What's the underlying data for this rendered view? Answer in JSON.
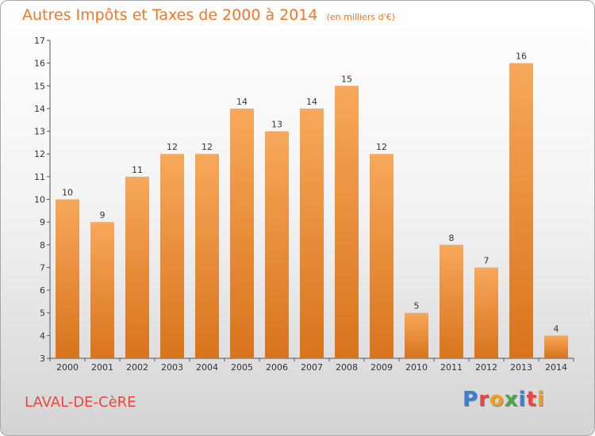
{
  "title": "Autres Impôts et Taxes de 2000 à 2014",
  "subtitle": "(en milliers d'€)",
  "commune": "LAVAL-DE-CèRE",
  "logo": {
    "text": "Proxiti",
    "letters": [
      {
        "ch": "P",
        "color": "#3a7fd0"
      },
      {
        "ch": "r",
        "color": "#e8483f"
      },
      {
        "ch": "o",
        "color": "#f0a020"
      },
      {
        "ch": "x",
        "color": "#44aa44"
      },
      {
        "ch": "i",
        "color": "#3a7fd0"
      },
      {
        "ch": "t",
        "color": "#e8483f"
      },
      {
        "ch": "i",
        "color": "#f0a020"
      }
    ]
  },
  "colors": {
    "bar_light": "#f7a85a",
    "bar_dark": "#d8741c",
    "title": "#f07828",
    "commune": "#e8483f"
  },
  "chart_data": {
    "type": "bar",
    "categories": [
      "2000",
      "2001",
      "2002",
      "2003",
      "2004",
      "2005",
      "2006",
      "2007",
      "2008",
      "2009",
      "2010",
      "2011",
      "2012",
      "2013",
      "2014"
    ],
    "values": [
      10,
      9,
      11,
      12,
      12,
      14,
      13,
      14,
      15,
      12,
      5,
      8,
      7,
      16,
      4
    ],
    "ylim": [
      3,
      17
    ],
    "yticks": [
      3,
      4,
      5,
      6,
      7,
      8,
      9,
      10,
      11,
      12,
      13,
      14,
      15,
      16,
      17
    ],
    "grid": false,
    "xlabel": "",
    "ylabel": ""
  }
}
